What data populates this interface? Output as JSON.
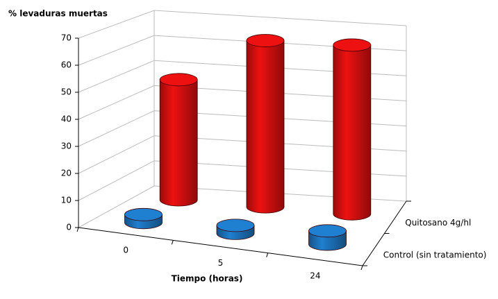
{
  "chart_data": {
    "type": "bar3d",
    "title": "% levaduras muertas",
    "x_label": "Tiempo (horas)",
    "categories": [
      "0",
      "5",
      "24"
    ],
    "series": [
      {
        "name": "Control (sin tratamiento)",
        "color": "#1f7fd0",
        "values": [
          3,
          3,
          5
        ]
      },
      {
        "name": "Quitosano 4g/hl",
        "color": "#ee1111",
        "values": [
          47,
          65,
          66
        ]
      }
    ],
    "ylim": [
      0,
      70
    ],
    "yticks": [
      0,
      10,
      20,
      30,
      40,
      50,
      60,
      70
    ],
    "grid": true
  }
}
